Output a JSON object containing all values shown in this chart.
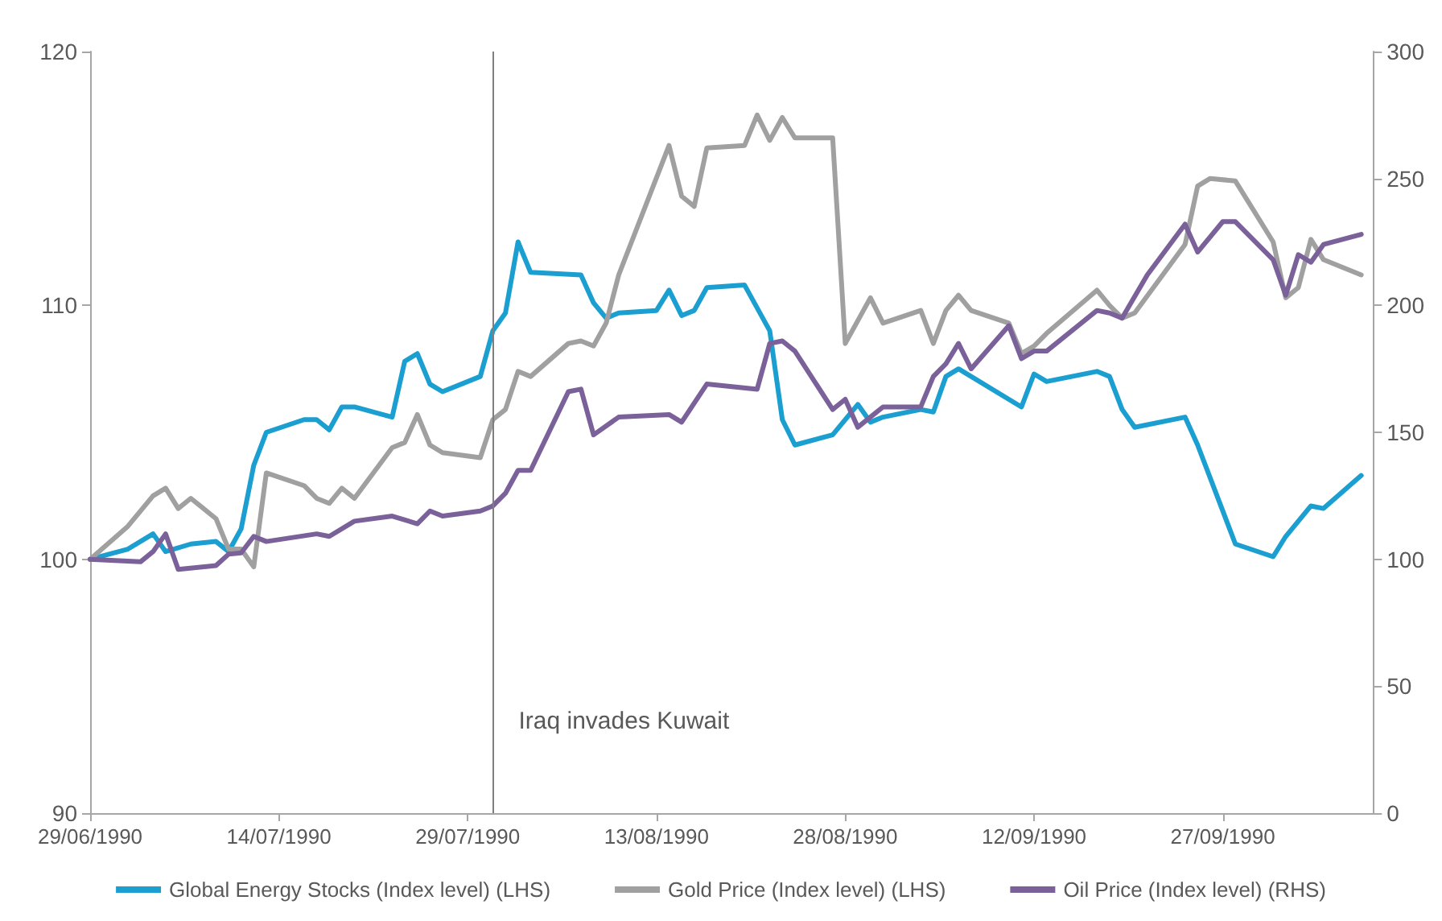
{
  "chart_data": {
    "type": "line",
    "xlim": [
      "1990-06-29",
      "1990-10-09"
    ],
    "xticks": [
      {
        "value": "1990-06-29",
        "label": "29/06/1990"
      },
      {
        "value": "1990-07-14",
        "label": "14/07/1990"
      },
      {
        "value": "1990-07-29",
        "label": "29/07/1990"
      },
      {
        "value": "1990-08-13",
        "label": "13/08/1990"
      },
      {
        "value": "1990-08-28",
        "label": "28/08/1990"
      },
      {
        "value": "1990-09-12",
        "label": "12/09/1990"
      },
      {
        "value": "1990-09-27",
        "label": "27/09/1990"
      }
    ],
    "ylim": [
      90,
      120
    ],
    "yticks": [
      90,
      100,
      110,
      120
    ],
    "y2lim": [
      0,
      300
    ],
    "y2ticks": [
      0,
      50,
      100,
      150,
      200,
      250,
      300
    ],
    "grid": false,
    "legend": "bottom",
    "marker": "none",
    "line_style": "solid",
    "ref_lines": [
      {
        "axis": "x",
        "value": "1990-07-31",
        "label": "Iraq invades Kuwait",
        "color": "#7f7f7f"
      }
    ],
    "series": [
      {
        "name": "Global Energy Stocks (Index level) (LHS)",
        "color": "#1a9fd0",
        "x": [
          "1990-06-29",
          "1990-07-02",
          "1990-07-04",
          "1990-07-05",
          "1990-07-07",
          "1990-07-09",
          "1990-07-10",
          "1990-07-11",
          "1990-07-12",
          "1990-07-13",
          "1990-07-16",
          "1990-07-17",
          "1990-07-18",
          "1990-07-19",
          "1990-07-20",
          "1990-07-23",
          "1990-07-24",
          "1990-07-25",
          "1990-07-26",
          "1990-07-27",
          "1990-07-30",
          "1990-07-31",
          "1990-08-01",
          "1990-08-02",
          "1990-08-03",
          "1990-08-07",
          "1990-08-08",
          "1990-08-09",
          "1990-08-10",
          "1990-08-13",
          "1990-08-14",
          "1990-08-15",
          "1990-08-16",
          "1990-08-17",
          "1990-08-20",
          "1990-08-22",
          "1990-08-23",
          "1990-08-24",
          "1990-08-27",
          "1990-08-29",
          "1990-08-30",
          "1990-08-31",
          "1990-09-03",
          "1990-09-04",
          "1990-09-05",
          "1990-09-06",
          "1990-09-11",
          "1990-09-12",
          "1990-09-13",
          "1990-09-17",
          "1990-09-18",
          "1990-09-19",
          "1990-09-20",
          "1990-09-24",
          "1990-09-25",
          "1990-09-28",
          "1990-10-01",
          "1990-10-02",
          "1990-10-04",
          "1990-10-05",
          "1990-10-08"
        ],
        "values": [
          100,
          100.4,
          101.0,
          100.3,
          100.6,
          100.7,
          100.3,
          101.2,
          103.7,
          105.0,
          105.5,
          105.5,
          105.1,
          106.0,
          106.0,
          105.6,
          107.8,
          108.1,
          106.9,
          106.6,
          107.2,
          109.0,
          109.7,
          112.5,
          111.3,
          111.2,
          110.1,
          109.5,
          109.7,
          109.8,
          110.6,
          109.6,
          109.8,
          110.7,
          110.8,
          109.0,
          105.5,
          104.5,
          104.9,
          106.1,
          105.4,
          105.6,
          105.9,
          105.8,
          107.2,
          107.5,
          106.0,
          107.3,
          107.0,
          107.4,
          107.2,
          105.9,
          105.2,
          105.6,
          104.5,
          100.6,
          100.1,
          100.9,
          102.1,
          102.0,
          103.3
        ]
      },
      {
        "name": "Gold Price (Index level) (LHS)",
        "color": "#a0a0a0",
        "x": [
          "1990-06-29",
          "1990-07-02",
          "1990-07-04",
          "1990-07-05",
          "1990-07-06",
          "1990-07-07",
          "1990-07-09",
          "1990-07-10",
          "1990-07-11",
          "1990-07-12",
          "1990-07-13",
          "1990-07-16",
          "1990-07-17",
          "1990-07-18",
          "1990-07-19",
          "1990-07-20",
          "1990-07-23",
          "1990-07-24",
          "1990-07-25",
          "1990-07-26",
          "1990-07-27",
          "1990-07-30",
          "1990-07-31",
          "1990-08-01",
          "1990-08-02",
          "1990-08-03",
          "1990-08-06",
          "1990-08-07",
          "1990-08-08",
          "1990-08-09",
          "1990-08-10",
          "1990-08-14",
          "1990-08-15",
          "1990-08-16",
          "1990-08-17",
          "1990-08-20",
          "1990-08-21",
          "1990-08-22",
          "1990-08-23",
          "1990-08-24",
          "1990-08-27",
          "1990-08-28",
          "1990-08-30",
          "1990-08-31",
          "1990-09-03",
          "1990-09-04",
          "1990-09-05",
          "1990-09-06",
          "1990-09-07",
          "1990-09-10",
          "1990-09-11",
          "1990-09-12",
          "1990-09-13",
          "1990-09-17",
          "1990-09-18",
          "1990-09-19",
          "1990-09-20",
          "1990-09-24",
          "1990-09-25",
          "1990-09-26",
          "1990-09-28",
          "1990-10-01",
          "1990-10-02",
          "1990-10-03",
          "1990-10-04",
          "1990-10-05",
          "1990-10-08"
        ],
        "values": [
          100,
          101.3,
          102.5,
          102.8,
          102.0,
          102.4,
          101.6,
          100.4,
          100.4,
          99.7,
          103.4,
          102.9,
          102.4,
          102.2,
          102.8,
          102.4,
          104.4,
          104.6,
          105.7,
          104.5,
          104.2,
          104.0,
          105.5,
          105.9,
          107.4,
          107.2,
          108.5,
          108.6,
          108.4,
          109.3,
          111.2,
          116.3,
          114.3,
          113.9,
          116.2,
          116.3,
          117.5,
          116.5,
          117.4,
          116.6,
          116.6,
          108.5,
          110.3,
          109.3,
          109.8,
          108.5,
          109.8,
          110.4,
          109.8,
          109.3,
          108.1,
          108.4,
          108.9,
          110.6,
          110.0,
          109.5,
          109.7,
          112.4,
          114.7,
          115.0,
          114.9,
          112.5,
          110.3,
          110.7,
          112.6,
          111.8,
          111.2
        ]
      },
      {
        "name": "Oil Price (Index level) (RHS)",
        "color": "#7b619a",
        "axis": "y2",
        "x": [
          "1990-06-29",
          "1990-07-03",
          "1990-07-04",
          "1990-07-05",
          "1990-07-06",
          "1990-07-09",
          "1990-07-10",
          "1990-07-11",
          "1990-07-12",
          "1990-07-13",
          "1990-07-17",
          "1990-07-18",
          "1990-07-20",
          "1990-07-23",
          "1990-07-25",
          "1990-07-26",
          "1990-07-27",
          "1990-07-30",
          "1990-07-31",
          "1990-08-01",
          "1990-08-02",
          "1990-08-03",
          "1990-08-06",
          "1990-08-07",
          "1990-08-08",
          "1990-08-10",
          "1990-08-14",
          "1990-08-15",
          "1990-08-17",
          "1990-08-21",
          "1990-08-22",
          "1990-08-23",
          "1990-08-24",
          "1990-08-27",
          "1990-08-28",
          "1990-08-29",
          "1990-08-31",
          "1990-09-03",
          "1990-09-04",
          "1990-09-05",
          "1990-09-06",
          "1990-09-07",
          "1990-09-10",
          "1990-09-11",
          "1990-09-12",
          "1990-09-13",
          "1990-09-17",
          "1990-09-18",
          "1990-09-19",
          "1990-09-21",
          "1990-09-24",
          "1990-09-25",
          "1990-09-27",
          "1990-09-28",
          "1990-10-01",
          "1990-10-02",
          "1990-10-03",
          "1990-10-04",
          "1990-10-05",
          "1990-10-08"
        ],
        "values": [
          100,
          99,
          103,
          110,
          96,
          97.5,
          102,
          102.5,
          109,
          107,
          110,
          109,
          115,
          117,
          114,
          119,
          117,
          119,
          121,
          126,
          135,
          135,
          166,
          167,
          149,
          156,
          157,
          154,
          169,
          167,
          185,
          186,
          182,
          159,
          163,
          152,
          160,
          160,
          172,
          177,
          185,
          175,
          192,
          179,
          182,
          182,
          198,
          197,
          195,
          212,
          232,
          221,
          233,
          233,
          218,
          204,
          220,
          217,
          224,
          228
        ]
      }
    ]
  }
}
